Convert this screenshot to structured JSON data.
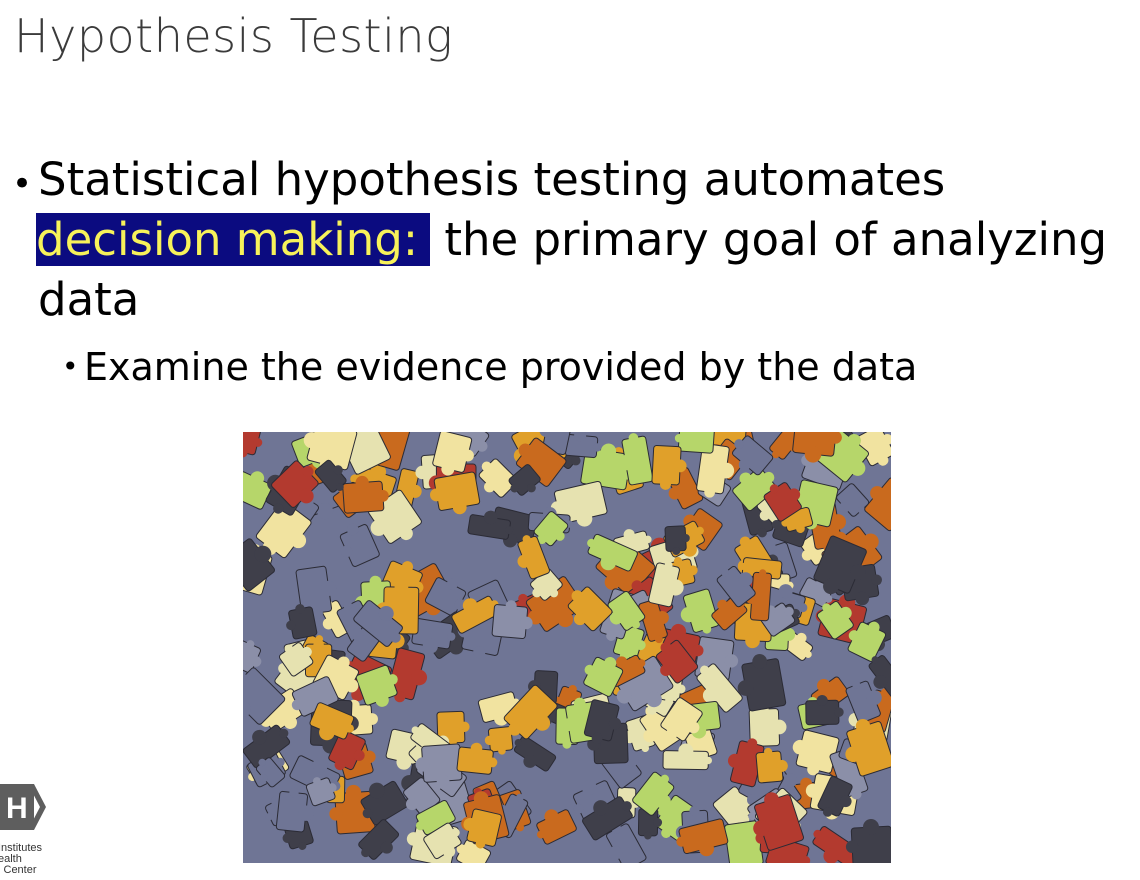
{
  "slide": {
    "title": "Hypothesis Testing",
    "bullet_1": {
      "lead": "Statistical hypothesis testing automates ",
      "highlight": "decision making:",
      "rest": " the primary goal of analyzing data"
    },
    "bullet_2": "Examine the evidence provided by the data",
    "image": {
      "subject": "pile of colorful jigsaw puzzle pieces",
      "palette": [
        "#6f7595",
        "#8b8fa8",
        "#e0a02a",
        "#c96a1e",
        "#e6e2b0",
        "#b6d66a",
        "#b33a2f",
        "#3f3f4a",
        "#f1e3a0"
      ]
    },
    "highlight_colors": {
      "background": "#0b0b80",
      "text": "#f7f25a"
    }
  },
  "logo": {
    "letter": "H",
    "text_lines": [
      "Institutes",
      "ealth",
      "l Center"
    ]
  }
}
